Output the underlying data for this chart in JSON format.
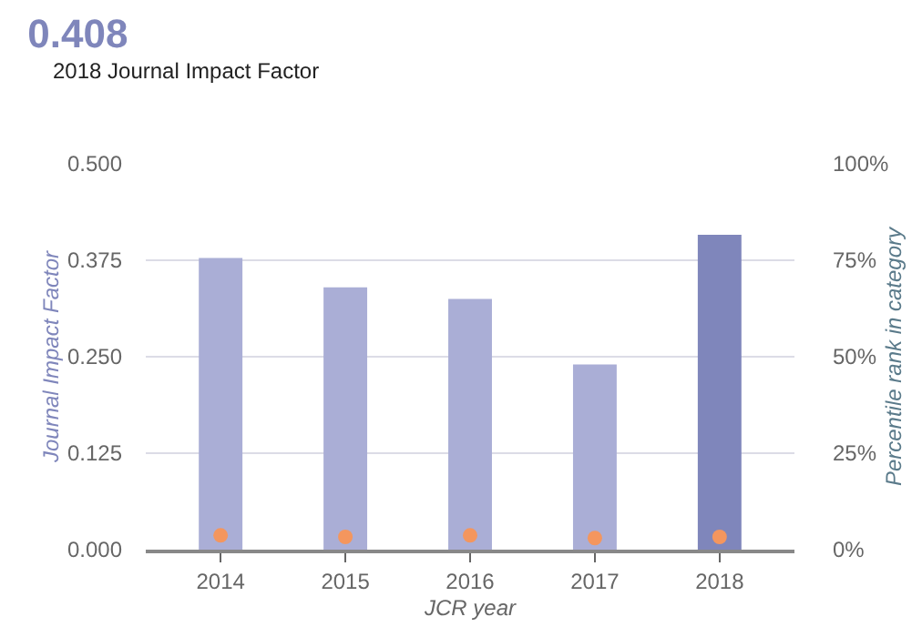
{
  "chart_data": {
    "type": "bar",
    "title": "0.408",
    "subtitle": "2018 Journal Impact Factor",
    "xlabel": "JCR year",
    "ylabel": "Journal Impact Factor",
    "y2label": "Percentile rank in category",
    "categories": [
      "2014",
      "2015",
      "2016",
      "2017",
      "2018"
    ],
    "series": [
      {
        "type": "bar",
        "colors": [
          "#aaaed6",
          "#aaaed6",
          "#aaaed6",
          "#aaaed6",
          "#7f86bb"
        ],
        "values": [
          0.378,
          0.34,
          0.325,
          0.24,
          0.408
        ]
      },
      {
        "type": "scatter",
        "axis": "y2",
        "color": "#f4965e",
        "values": [
          3.7,
          3.3,
          3.7,
          3,
          3.3
        ]
      }
    ],
    "ylim": [
      0,
      0.5
    ],
    "yticks": [
      {
        "value": 0,
        "label": "0.000"
      },
      {
        "value": 0.125,
        "label": "0.125"
      },
      {
        "value": 0.25,
        "label": "0.250"
      },
      {
        "value": 0.375,
        "label": "0.375"
      },
      {
        "value": 0.5,
        "label": "0.500"
      }
    ],
    "y2lim": [
      0,
      100
    ],
    "y2ticks": [
      {
        "value": 0,
        "label": "0%"
      },
      {
        "value": 25,
        "label": "25%"
      },
      {
        "value": 50,
        "label": "50%"
      },
      {
        "value": 75,
        "label": "75%"
      },
      {
        "value": 100,
        "label": "100%"
      }
    ],
    "grid": "y",
    "legend": false,
    "marker": "circle"
  }
}
